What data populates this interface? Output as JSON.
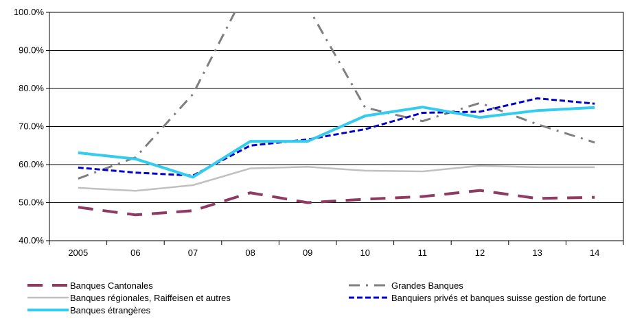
{
  "chart_data": {
    "type": "line",
    "categories": [
      "2005",
      "06",
      "07",
      "08",
      "09",
      "10",
      "11",
      "12",
      "13",
      "14"
    ],
    "ylim": [
      40,
      100
    ],
    "yticks": [
      "40.0%",
      "50.0%",
      "60.0%",
      "70.0%",
      "80.0%",
      "90.0%",
      "100.0%"
    ],
    "ytick_values": [
      40,
      50,
      60,
      70,
      80,
      90,
      100
    ],
    "grid": "horizontal",
    "legend_position": "bottom",
    "series": [
      {
        "name": "Banques Cantonales",
        "values": [
          48.8,
          46.8,
          47.9,
          52.6,
          50.0,
          50.9,
          51.6,
          53.2,
          51.1,
          51.4
        ],
        "color": "#8e3a62",
        "style": "long-dash"
      },
      {
        "name": "Grandes Banques",
        "values": [
          56.3,
          61.9,
          78.5,
          108.0,
          101.5,
          75.0,
          71.4,
          76.2,
          70.6,
          65.8
        ],
        "color": "#7f7f7f",
        "style": "dash-dot"
      },
      {
        "name": "Banques régionales, Raiffeisen et autres",
        "values": [
          53.9,
          53.1,
          54.6,
          59.0,
          59.4,
          58.4,
          58.2,
          59.7,
          59.3,
          59.3
        ],
        "color": "#c0c0c0",
        "style": "solid"
      },
      {
        "name": "Banquiers privés et banques suisse gestion de fortune",
        "values": [
          59.2,
          57.9,
          57.1,
          65.0,
          66.6,
          69.3,
          73.6,
          73.9,
          77.4,
          76.0
        ],
        "color": "#0000cc",
        "style": "short-dash"
      },
      {
        "name": "Banques étrangères",
        "values": [
          63.1,
          61.5,
          56.7,
          66.1,
          66.1,
          72.8,
          75.1,
          72.4,
          74.2,
          75.0
        ],
        "color": "#33ccee",
        "style": "solid-thick"
      }
    ]
  }
}
